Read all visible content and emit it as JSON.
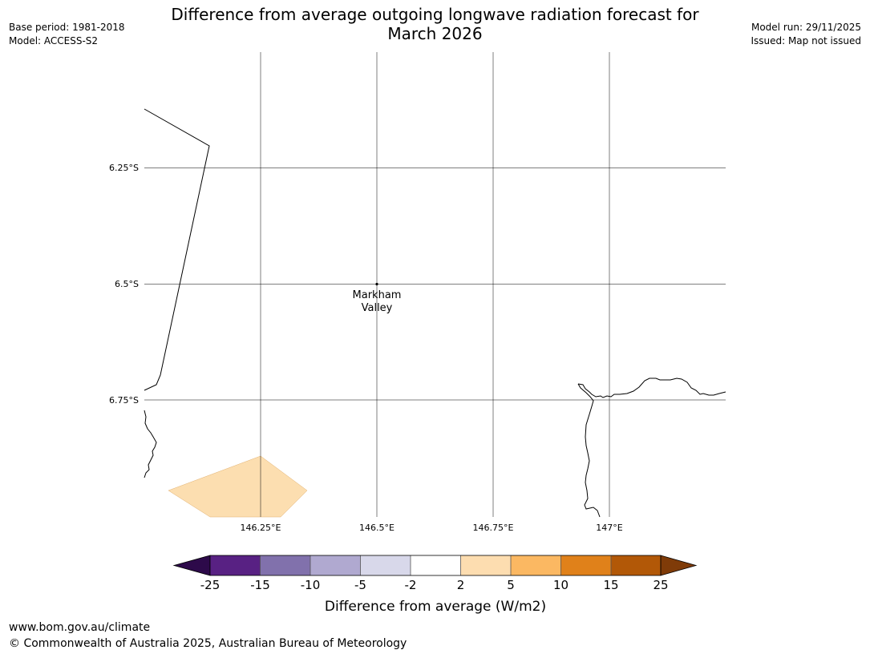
{
  "header": {
    "title_line1": "Difference from average outgoing longwave radiation forecast for",
    "title_line2": "March 2026",
    "base_period": "Base period: 1981-2018",
    "model": "Model: ACCESS-S2",
    "model_run": "Model run: 29/11/2025",
    "issued": "Issued: Map not issued"
  },
  "map": {
    "lat_labels": [
      "6.25°S",
      "6.5°S",
      "6.75°S"
    ],
    "lon_labels": [
      "146.25°E",
      "146.5°E",
      "146.75°E",
      "147°E"
    ],
    "place": {
      "name_line1": "Markham",
      "name_line2": "Valley",
      "lon": 146.5,
      "lat": -6.5
    },
    "anomaly_region_color": "#fcdeb0"
  },
  "colorbar": {
    "ticks": [
      "-25",
      "-15",
      "-10",
      "-5",
      "-2",
      "2",
      "5",
      "10",
      "15",
      "25"
    ],
    "colors": [
      "#2d0a4a",
      "#582183",
      "#8171ac",
      "#b0a9d0",
      "#d8d8ea",
      "#ffffff",
      "#fdddb0",
      "#fbb862",
      "#e0811a",
      "#b25807",
      "#7f3b08"
    ],
    "label": "Difference from average (W/m2)"
  },
  "footer": {
    "url": "www.bom.gov.au/climate",
    "copyright": "© Commonwealth of Australia 2025, Australian Bureau of Meteorology"
  }
}
